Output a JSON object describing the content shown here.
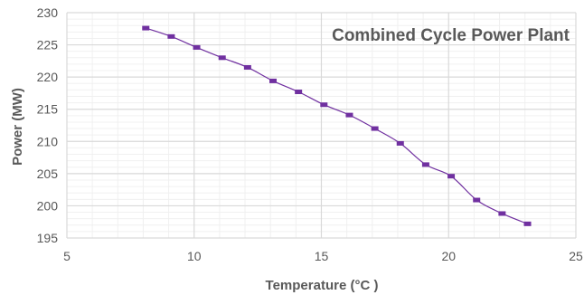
{
  "chart_data": {
    "type": "scatter",
    "title": "Combined Cycle Power Plant",
    "xlabel": "Temperature (°C )",
    "ylabel": "Power (MW)",
    "xlim": [
      5,
      25
    ],
    "ylim": [
      195,
      230
    ],
    "xticks": [
      5,
      10,
      15,
      20,
      25
    ],
    "yticks": [
      195,
      200,
      205,
      210,
      215,
      220,
      225,
      230
    ],
    "major_grid": true,
    "minor_grid": true,
    "colors": {
      "series": "#7030a0",
      "grid_major": "#d9d9d9",
      "grid_minor": "#f0f0f0",
      "text": "#595959"
    },
    "series": [
      {
        "marker": "square",
        "line": "smooth",
        "x": [
          8.1,
          9.1,
          10.1,
          11.1,
          12.1,
          13.1,
          14.1,
          15.1,
          16.1,
          17.1,
          18.1,
          19.1,
          20.1,
          21.1,
          22.1,
          23.1
        ],
        "y": [
          227.6,
          226.3,
          224.6,
          223.0,
          221.5,
          219.4,
          217.7,
          215.7,
          214.1,
          212.0,
          209.7,
          206.4,
          204.6,
          200.9,
          198.8,
          197.2
        ]
      }
    ]
  }
}
